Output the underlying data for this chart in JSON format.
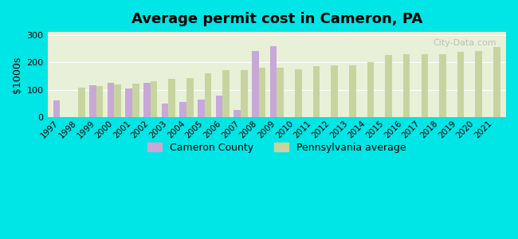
{
  "title": "Average permit cost in Cameron, PA",
  "ylabel": "$1000s",
  "years": [
    1997,
    1998,
    1999,
    2000,
    2001,
    2002,
    2003,
    2004,
    2005,
    2006,
    2007,
    2008,
    2009,
    2010,
    2011,
    2012,
    2013,
    2014,
    2015,
    2016,
    2017,
    2018,
    2019,
    2020,
    2021
  ],
  "cameron": [
    62,
    null,
    115,
    125,
    105,
    125,
    50,
    55,
    65,
    78,
    25,
    240,
    258,
    null,
    null,
    null,
    null,
    null,
    null,
    null,
    null,
    null,
    null,
    null,
    null
  ],
  "pa_avg": [
    null,
    107,
    112,
    118,
    122,
    132,
    138,
    143,
    160,
    170,
    170,
    180,
    180,
    175,
    187,
    188,
    190,
    200,
    225,
    228,
    228,
    228,
    238,
    242,
    255
  ],
  "cameron_color": "#c8a8d8",
  "pa_color": "#c8d4a0",
  "background_top": "#e8f0d8",
  "background_bottom": "#f0f8e8",
  "outer_bg": "#00e5e5",
  "ylim": [
    0,
    310
  ],
  "yticks": [
    0,
    100,
    200,
    300
  ]
}
